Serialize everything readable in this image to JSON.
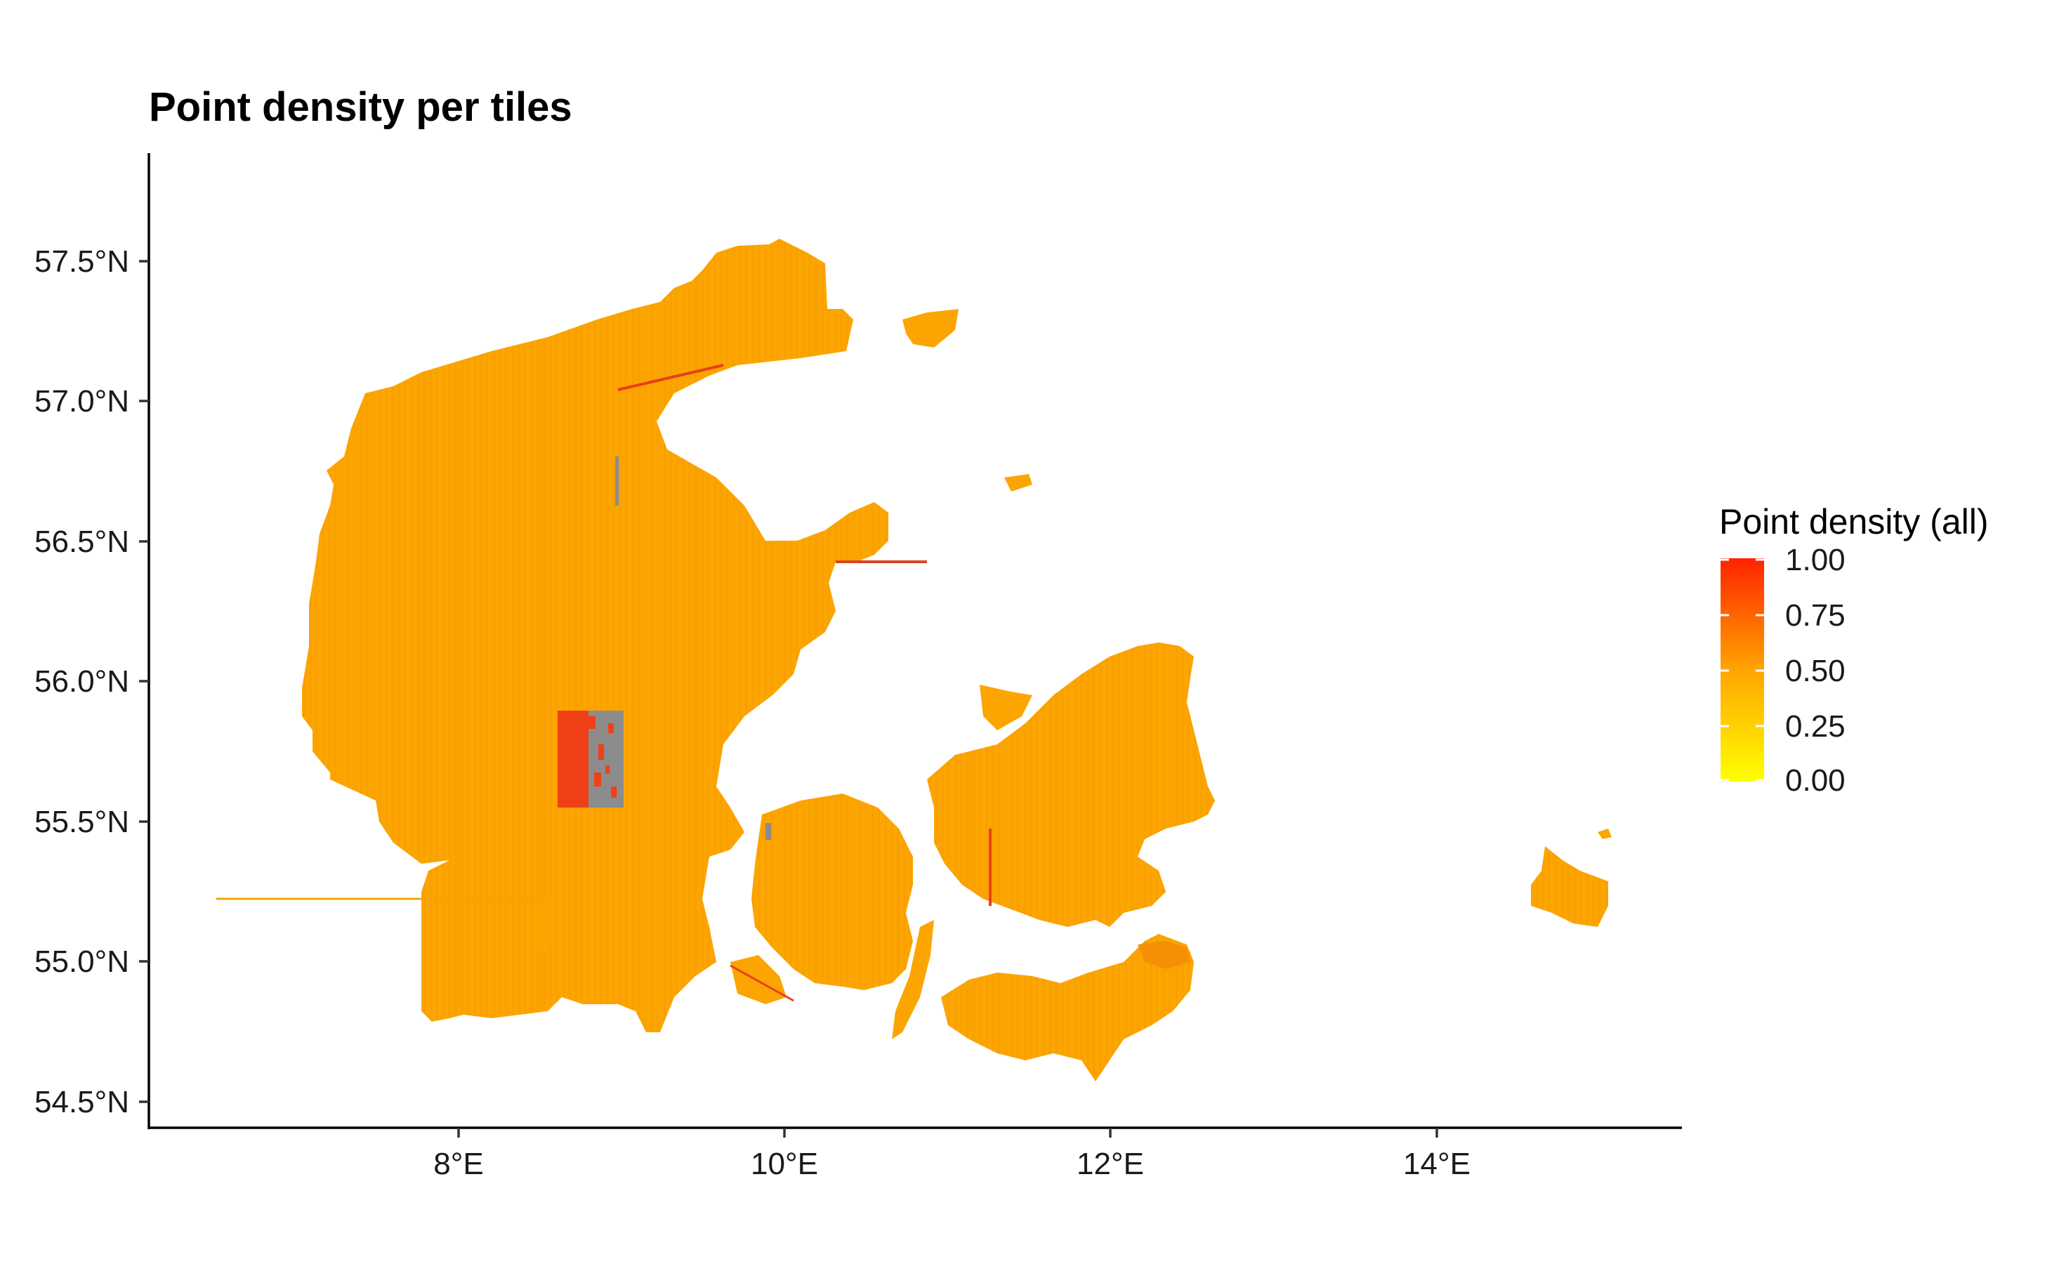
{
  "title": "Point density per tiles",
  "x_axis": {
    "ticks": [
      {
        "value": 8,
        "label": "8°E"
      },
      {
        "value": 10,
        "label": "10°E"
      },
      {
        "value": 12,
        "label": "12°E"
      },
      {
        "value": 14,
        "label": "14°E"
      }
    ],
    "range": [
      6.15,
      15.55
    ]
  },
  "y_axis": {
    "ticks": [
      {
        "value": 54.5,
        "label": "54.5°N"
      },
      {
        "value": 55.0,
        "label": "55.0°N"
      },
      {
        "value": 55.5,
        "label": "55.5°N"
      },
      {
        "value": 56.0,
        "label": "56.0°N"
      },
      {
        "value": 56.5,
        "label": "56.5°N"
      },
      {
        "value": 57.0,
        "label": "57.0°N"
      },
      {
        "value": 57.5,
        "label": "57.5°N"
      }
    ],
    "range": [
      54.39,
      57.88
    ]
  },
  "legend": {
    "title": "Point density (all)",
    "labels": [
      "1.00",
      "0.75",
      "0.50",
      "0.25",
      "0.00"
    ],
    "colors": {
      "low": "#ffff00",
      "mid": "#ffa500",
      "high": "#ff2200"
    }
  },
  "map": {
    "fill_color": "#fca500",
    "dense_color": "#f26d10",
    "nodata_color": "#8c8c8c"
  }
}
